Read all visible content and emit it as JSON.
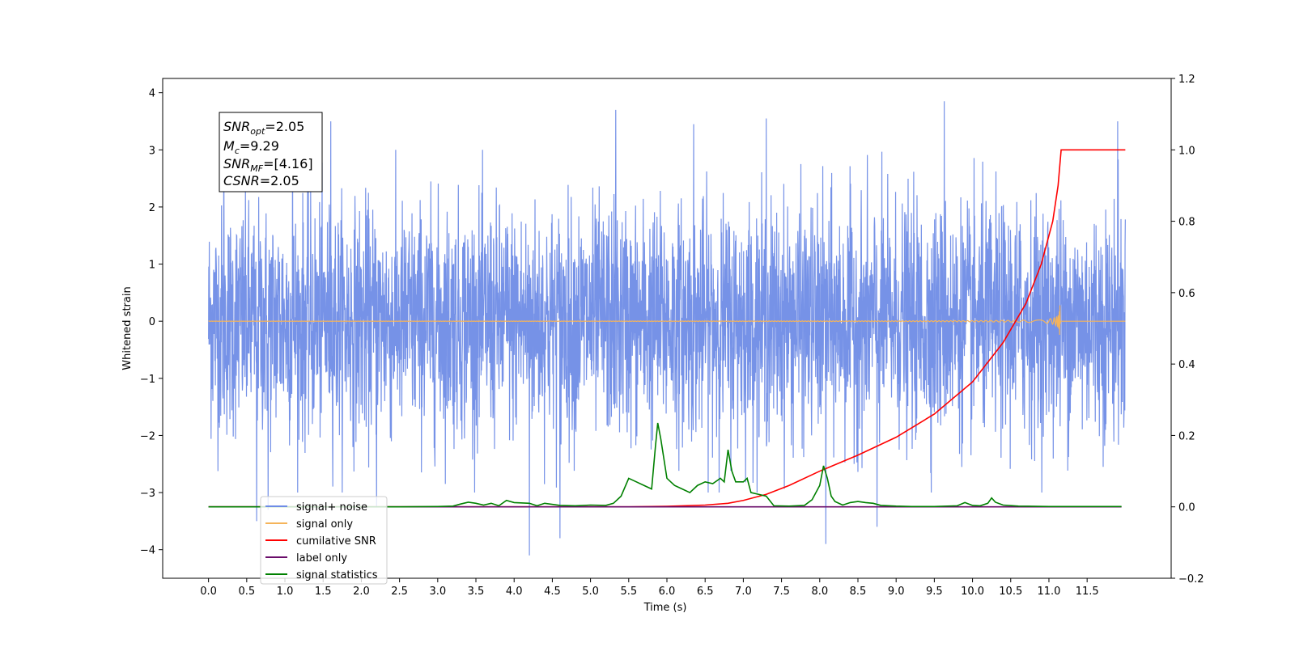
{
  "chart_data": {
    "type": "line",
    "xlabel": "Time (s)",
    "ylabel": "Whitened strain",
    "x_range": [
      -0.6,
      12.6
    ],
    "ylim": [
      -4.5,
      4.25
    ],
    "ylim_right": [
      -0.2,
      1.2
    ],
    "x_ticks": [
      "0.0",
      "0.5",
      "1.0",
      "1.5",
      "2.0",
      "2.5",
      "3.0",
      "3.5",
      "4.0",
      "4.5",
      "5.0",
      "5.5",
      "6.0",
      "6.5",
      "7.0",
      "7.5",
      "8.0",
      "8.5",
      "9.0",
      "9.5",
      "10.0",
      "10.5",
      "11.0",
      "11.5"
    ],
    "y_ticks": [
      "−4",
      "−3",
      "−2",
      "−1",
      "0",
      "1",
      "2",
      "3",
      "4"
    ],
    "y_ticks_right": [
      "−0.2",
      "0.0",
      "0.2",
      "0.4",
      "0.6",
      "0.8",
      "1.0",
      "1.2"
    ],
    "grid": false,
    "legend_placement": "lower-left",
    "annotation": {
      "lines": [
        {
          "sym": "SNR",
          "sub": "opt",
          "value": "=2.05"
        },
        {
          "sym": "M",
          "sub": "c",
          "value": "=9.29"
        },
        {
          "sym": "SNR",
          "sub": "MF",
          "value": "=[4.16]"
        },
        {
          "sym": "CSNR",
          "sub": "",
          "value": "=2.05"
        }
      ]
    },
    "series": [
      {
        "name": "signal+ noise",
        "axis": "left",
        "color": "#6f8ce6",
        "style": "noise",
        "x_start": 0.0,
        "x_end": 12.0,
        "typical_amplitude": 1.0,
        "peaks": [
          {
            "x": 0.2,
            "y": 3.1
          },
          {
            "x": 0.63,
            "y": -3.5
          },
          {
            "x": 0.78,
            "y": -3.3
          },
          {
            "x": 1.1,
            "y": 3.4
          },
          {
            "x": 1.6,
            "y": 3.5
          },
          {
            "x": 2.2,
            "y": -3.25
          },
          {
            "x": 4.2,
            "y": -4.1
          },
          {
            "x": 4.6,
            "y": -3.8
          },
          {
            "x": 5.33,
            "y": 3.7
          },
          {
            "x": 6.35,
            "y": 3.45
          },
          {
            "x": 7.3,
            "y": 3.55
          },
          {
            "x": 8.08,
            "y": -3.9
          },
          {
            "x": 8.75,
            "y": -3.6
          },
          {
            "x": 9.63,
            "y": 3.85
          },
          {
            "x": 11.9,
            "y": 3.5
          }
        ]
      },
      {
        "name": "signal only",
        "axis": "left",
        "color": "#f5b45a",
        "style": "chirp",
        "x_start": 0.0,
        "x_end": 12.0,
        "merger_time": 11.15,
        "peak_amplitude": 0.28
      },
      {
        "name": "cumilative SNR",
        "axis": "right",
        "color": "#ff0000",
        "x": [
          0,
          5.5,
          6.0,
          6.5,
          6.8,
          7.0,
          7.3,
          7.6,
          8.0,
          8.5,
          9.0,
          9.5,
          10.0,
          10.4,
          10.7,
          10.9,
          11.05,
          11.12,
          11.16,
          12.0
        ],
        "y": [
          0.0,
          0.0,
          0.0015,
          0.005,
          0.01,
          0.018,
          0.035,
          0.06,
          0.1,
          0.145,
          0.195,
          0.26,
          0.35,
          0.46,
          0.57,
          0.68,
          0.8,
          0.9,
          1.0,
          1.0
        ]
      },
      {
        "name": "label only",
        "axis": "right",
        "color": "#6a0d6a",
        "x": [
          0,
          11.95
        ],
        "y": [
          0.0,
          0.0
        ]
      },
      {
        "name": "signal statistics",
        "axis": "right",
        "color": "#008000",
        "x": [
          0,
          2.5,
          3.0,
          3.2,
          3.3,
          3.4,
          3.5,
          3.6,
          3.7,
          3.8,
          3.9,
          4.0,
          4.2,
          4.3,
          4.4,
          4.6,
          4.8,
          5.0,
          5.2,
          5.3,
          5.4,
          5.5,
          5.6,
          5.7,
          5.8,
          5.85,
          5.88,
          5.92,
          6.0,
          6.1,
          6.2,
          6.3,
          6.4,
          6.5,
          6.6,
          6.7,
          6.75,
          6.8,
          6.85,
          6.9,
          7.0,
          7.05,
          7.1,
          7.2,
          7.3,
          7.4,
          7.6,
          7.8,
          7.9,
          8.0,
          8.05,
          8.1,
          8.15,
          8.2,
          8.3,
          8.4,
          8.5,
          8.6,
          8.7,
          8.8,
          9.0,
          9.2,
          9.5,
          9.8,
          9.9,
          10.0,
          10.1,
          10.2,
          10.25,
          10.3,
          10.4,
          10.6,
          11.0,
          11.95
        ],
        "y": [
          0.0,
          0.0,
          0.001,
          0.002,
          0.008,
          0.013,
          0.01,
          0.005,
          0.01,
          0.003,
          0.018,
          0.012,
          0.01,
          0.003,
          0.01,
          0.004,
          0.003,
          0.005,
          0.004,
          0.01,
          0.03,
          0.08,
          0.07,
          0.06,
          0.05,
          0.17,
          0.235,
          0.19,
          0.08,
          0.06,
          0.05,
          0.04,
          0.06,
          0.07,
          0.065,
          0.08,
          0.07,
          0.16,
          0.1,
          0.07,
          0.07,
          0.08,
          0.04,
          0.035,
          0.03,
          0.003,
          0.002,
          0.004,
          0.02,
          0.06,
          0.115,
          0.08,
          0.03,
          0.015,
          0.005,
          0.012,
          0.015,
          0.012,
          0.01,
          0.004,
          0.002,
          0.001,
          0.001,
          0.003,
          0.012,
          0.004,
          0.003,
          0.01,
          0.025,
          0.013,
          0.005,
          0.002,
          0.001,
          0.001
        ]
      }
    ]
  }
}
